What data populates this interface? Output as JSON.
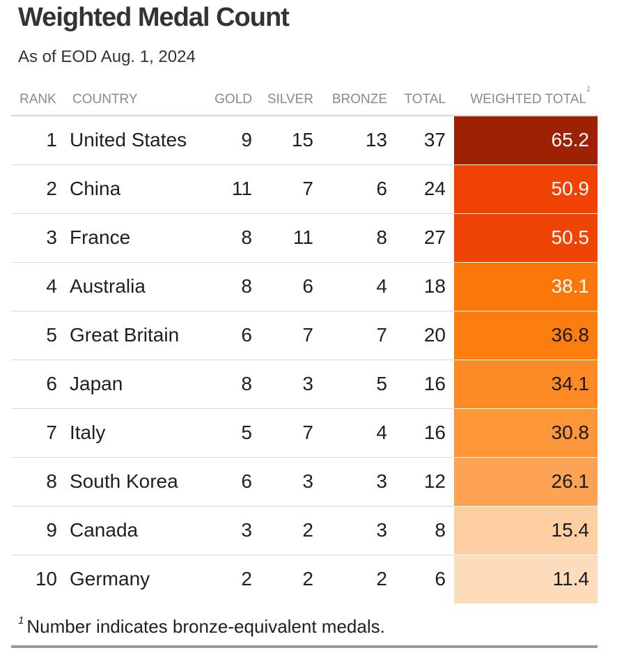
{
  "chart_data": {
    "type": "table",
    "title": "Weighted Medal Count",
    "subtitle": "As of EOD Aug. 1, 2024",
    "columns": [
      "RANK",
      "COUNTRY",
      "GOLD",
      "SILVER",
      "BRONZE",
      "TOTAL",
      "WEIGHTED TOTAL"
    ],
    "column_footnote_marker": "1",
    "rows": [
      {
        "rank": 1,
        "country": "United States",
        "gold": 9,
        "silver": 15,
        "bronze": 13,
        "total": 37,
        "weighted": "65.2",
        "bg": "#9e2103",
        "fg": "#ffffff"
      },
      {
        "rank": 2,
        "country": "China",
        "gold": 11,
        "silver": 7,
        "bronze": 6,
        "total": 24,
        "weighted": "50.9",
        "bg": "#f04204",
        "fg": "#ffffff"
      },
      {
        "rank": 3,
        "country": "France",
        "gold": 8,
        "silver": 11,
        "bronze": 8,
        "total": 27,
        "weighted": "50.5",
        "bg": "#f04404",
        "fg": "#ffffff"
      },
      {
        "rank": 4,
        "country": "Australia",
        "gold": 8,
        "silver": 6,
        "bronze": 4,
        "total": 18,
        "weighted": "38.1",
        "bg": "#fb7609",
        "fg": "#ffffff"
      },
      {
        "rank": 5,
        "country": "Great Britain",
        "gold": 6,
        "silver": 7,
        "bronze": 7,
        "total": 20,
        "weighted": "36.8",
        "bg": "#fc7e0f",
        "fg": "#1a1a1a"
      },
      {
        "rank": 6,
        "country": "Japan",
        "gold": 8,
        "silver": 3,
        "bronze": 5,
        "total": 16,
        "weighted": "34.1",
        "bg": "#fd8a25",
        "fg": "#1a1a1a"
      },
      {
        "rank": 7,
        "country": "Italy",
        "gold": 5,
        "silver": 7,
        "bronze": 4,
        "total": 16,
        "weighted": "30.8",
        "bg": "#fd9539",
        "fg": "#1a1a1a"
      },
      {
        "rank": 8,
        "country": "South Korea",
        "gold": 6,
        "silver": 3,
        "bronze": 3,
        "total": 12,
        "weighted": "26.1",
        "bg": "#fda353",
        "fg": "#1a1a1a"
      },
      {
        "rank": 9,
        "country": "Canada",
        "gold": 3,
        "silver": 2,
        "bronze": 3,
        "total": 8,
        "weighted": "15.4",
        "bg": "#fdcfa2",
        "fg": "#1a1a1a"
      },
      {
        "rank": 10,
        "country": "Germany",
        "gold": 2,
        "silver": 2,
        "bronze": 2,
        "total": 6,
        "weighted": "11.4",
        "bg": "#fddcbc",
        "fg": "#1a1a1a"
      }
    ],
    "footnote_marker": "1",
    "footnote": "Number indicates bronze-equivalent medals."
  }
}
